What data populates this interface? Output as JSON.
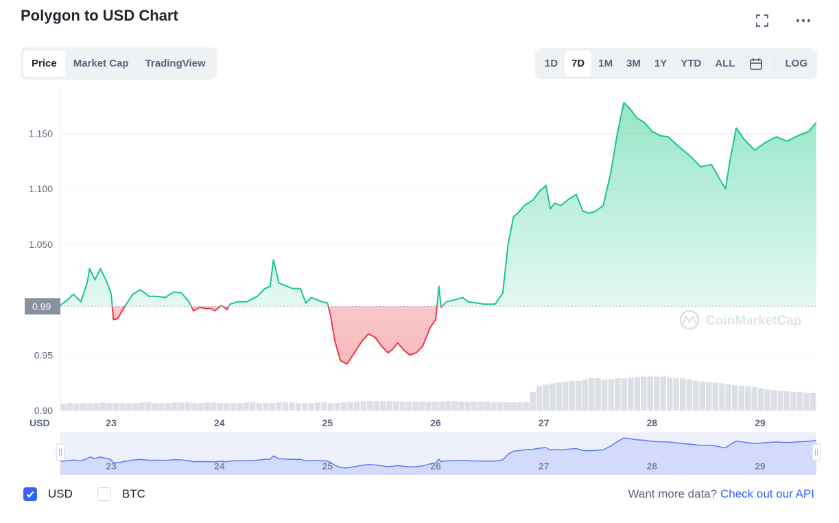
{
  "header": {
    "title": "Polygon to USD Chart"
  },
  "tabs": [
    {
      "label": "Price",
      "active": true
    },
    {
      "label": "Market Cap",
      "active": false
    },
    {
      "label": "TradingView",
      "active": false
    }
  ],
  "ranges": [
    {
      "label": "1D",
      "active": false
    },
    {
      "label": "7D",
      "active": true
    },
    {
      "label": "1M",
      "active": false
    },
    {
      "label": "3M",
      "active": false
    },
    {
      "label": "1Y",
      "active": false
    },
    {
      "label": "YTD",
      "active": false
    },
    {
      "label": "ALL",
      "active": false
    }
  ],
  "log_label": "LOG",
  "watermark": "CoinMarketCap",
  "legend": {
    "usd_label": "USD",
    "usd_checked": true,
    "btc_label": "BTC",
    "btc_checked": false
  },
  "footer": {
    "more_text": "Want more data?",
    "more_link": "Check out our API"
  },
  "colors": {
    "up": "#16c784",
    "down": "#ea3943",
    "accent": "#3861fb",
    "volume": "#dcdfe5"
  },
  "chart_data": {
    "type": "line",
    "title": "Polygon to USD Chart",
    "ylabel": "USD",
    "ylim": [
      0.9,
      1.19
    ],
    "yticks": [
      0.9,
      0.95,
      1.05,
      1.1,
      1.15
    ],
    "ytick_labels": [
      "0.90",
      "0.95",
      "1.050",
      "1.100",
      "1.150"
    ],
    "x_ticks": [
      23,
      24,
      25,
      26,
      27,
      28,
      29
    ],
    "x_tick_labels": [
      "23",
      "24",
      "25",
      "26",
      "27",
      "28",
      "29"
    ],
    "xlim": [
      22.53,
      29.52
    ],
    "baseline": 0.994,
    "baseline_label": "0.99",
    "grid": true,
    "series": [
      {
        "values": [
          [
            22.53,
            0.995
          ],
          [
            22.6,
            1.0
          ],
          [
            22.65,
            1.005
          ],
          [
            22.72,
            0.998
          ],
          [
            22.78,
            1.016
          ],
          [
            22.8,
            1.028
          ],
          [
            22.85,
            1.018
          ],
          [
            22.9,
            1.028
          ],
          [
            22.96,
            1.016
          ],
          [
            23.0,
            1.005
          ],
          [
            23.02,
            0.982
          ],
          [
            23.06,
            0.983
          ],
          [
            23.12,
            0.993
          ],
          [
            23.2,
            1.005
          ],
          [
            23.27,
            1.009
          ],
          [
            23.35,
            1.003
          ],
          [
            23.42,
            1.003
          ],
          [
            23.5,
            1.002
          ],
          [
            23.58,
            1.007
          ],
          [
            23.65,
            1.006
          ],
          [
            23.72,
            0.998
          ],
          [
            23.76,
            0.99
          ],
          [
            23.82,
            0.993
          ],
          [
            23.87,
            0.992
          ],
          [
            23.92,
            0.992
          ],
          [
            23.96,
            0.99
          ],
          [
            24.02,
            0.995
          ],
          [
            24.07,
            0.991
          ],
          [
            24.1,
            0.996
          ],
          [
            24.17,
            0.998
          ],
          [
            24.25,
            0.998
          ],
          [
            24.35,
            1.003
          ],
          [
            24.42,
            1.01
          ],
          [
            24.47,
            1.012
          ],
          [
            24.5,
            1.036
          ],
          [
            24.55,
            1.015
          ],
          [
            24.6,
            1.013
          ],
          [
            24.68,
            1.01
          ],
          [
            24.75,
            1.01
          ],
          [
            24.8,
            0.997
          ],
          [
            24.85,
            1.002
          ],
          [
            24.9,
            1.0
          ],
          [
            24.95,
            0.998
          ],
          [
            25.0,
            0.997
          ],
          [
            25.03,
            0.985
          ],
          [
            25.07,
            0.962
          ],
          [
            25.12,
            0.945
          ],
          [
            25.18,
            0.942
          ],
          [
            25.25,
            0.952
          ],
          [
            25.32,
            0.963
          ],
          [
            25.38,
            0.969
          ],
          [
            25.44,
            0.966
          ],
          [
            25.5,
            0.958
          ],
          [
            25.56,
            0.952
          ],
          [
            25.6,
            0.955
          ],
          [
            25.65,
            0.961
          ],
          [
            25.7,
            0.955
          ],
          [
            25.76,
            0.95
          ],
          [
            25.82,
            0.952
          ],
          [
            25.88,
            0.958
          ],
          [
            25.95,
            0.975
          ],
          [
            26.0,
            0.982
          ],
          [
            26.03,
            1.012
          ],
          [
            26.05,
            0.993
          ],
          [
            26.1,
            0.998
          ],
          [
            26.18,
            1.0
          ],
          [
            26.25,
            1.002
          ],
          [
            26.3,
            0.998
          ],
          [
            26.38,
            0.997
          ],
          [
            26.45,
            0.996
          ],
          [
            26.55,
            0.996
          ],
          [
            26.62,
            1.006
          ],
          [
            26.67,
            1.05
          ],
          [
            26.72,
            1.075
          ],
          [
            26.76,
            1.078
          ],
          [
            26.82,
            1.085
          ],
          [
            26.9,
            1.09
          ],
          [
            26.96,
            1.098
          ],
          [
            27.02,
            1.103
          ],
          [
            27.06,
            1.082
          ],
          [
            27.1,
            1.087
          ],
          [
            27.16,
            1.085
          ],
          [
            27.22,
            1.09
          ],
          [
            27.3,
            1.095
          ],
          [
            27.36,
            1.08
          ],
          [
            27.42,
            1.078
          ],
          [
            27.48,
            1.08
          ],
          [
            27.55,
            1.085
          ],
          [
            27.62,
            1.115
          ],
          [
            27.68,
            1.15
          ],
          [
            27.74,
            1.178
          ],
          [
            27.8,
            1.172
          ],
          [
            27.86,
            1.164
          ],
          [
            27.93,
            1.16
          ],
          [
            28.0,
            1.152
          ],
          [
            28.08,
            1.148
          ],
          [
            28.15,
            1.147
          ],
          [
            28.25,
            1.138
          ],
          [
            28.35,
            1.13
          ],
          [
            28.45,
            1.12
          ],
          [
            28.55,
            1.122
          ],
          [
            28.62,
            1.11
          ],
          [
            28.68,
            1.1
          ],
          [
            28.72,
            1.125
          ],
          [
            28.78,
            1.155
          ],
          [
            28.85,
            1.145
          ],
          [
            28.95,
            1.135
          ],
          [
            29.05,
            1.142
          ],
          [
            29.15,
            1.147
          ],
          [
            29.25,
            1.143
          ],
          [
            29.35,
            1.148
          ],
          [
            29.45,
            1.152
          ],
          [
            29.52,
            1.16
          ]
        ]
      }
    ],
    "volume": [
      11,
      12,
      11,
      12,
      12,
      12,
      13,
      12,
      12,
      12,
      12,
      12,
      13,
      13,
      12,
      12,
      12,
      13,
      13,
      13,
      12,
      12,
      13,
      13,
      12,
      12,
      12,
      12,
      13,
      13,
      12,
      12,
      12,
      13,
      13,
      13,
      12,
      12,
      12,
      13,
      13,
      12,
      12,
      13,
      14,
      14,
      15,
      15,
      15,
      15,
      15,
      15,
      14,
      14,
      14,
      14,
      14,
      14,
      14,
      15,
      15,
      14,
      14,
      14,
      14,
      14,
      13,
      13,
      13,
      13,
      13,
      14,
      30,
      40,
      42,
      44,
      45,
      46,
      48,
      48,
      50,
      52,
      52,
      50,
      51,
      52,
      52,
      53,
      54,
      55,
      55,
      55,
      55,
      53,
      52,
      52,
      50,
      48,
      47,
      46,
      45,
      44,
      42,
      41,
      40,
      39,
      38,
      36,
      34,
      33,
      32,
      31,
      30,
      30,
      29,
      28
    ],
    "navigator": {
      "x_tick_labels": [
        "23",
        "24",
        "25",
        "26",
        "27",
        "28",
        "29"
      ]
    }
  }
}
